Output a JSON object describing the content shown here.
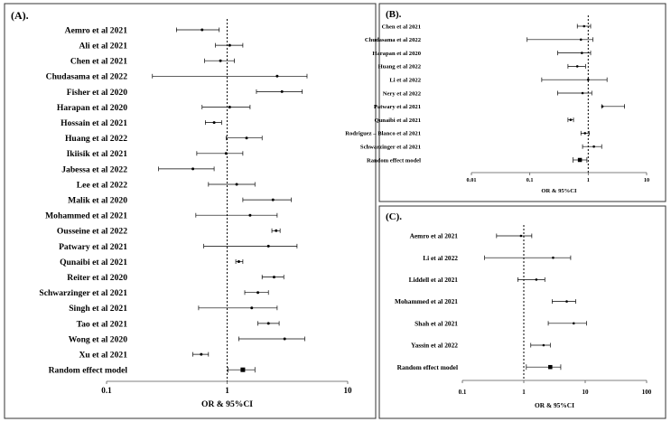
{
  "chart_data": [
    {
      "type": "forest",
      "title": "(A).",
      "xlabel": "OR & 95%CI",
      "xscale": "log",
      "xlim": [
        0.1,
        10
      ],
      "xticks": [
        "0.1",
        "1",
        "10"
      ],
      "reference_line": 1,
      "studies": [
        {
          "label": "Aemro et al 2021",
          "or": 0.62,
          "lo": 0.38,
          "hi": 0.86
        },
        {
          "label": "Ali et al 2021",
          "or": 1.05,
          "lo": 0.8,
          "hi": 1.35
        },
        {
          "label": "Chen et al 2021",
          "or": 0.88,
          "lo": 0.65,
          "hi": 1.15
        },
        {
          "label": "Chudasama et al 2022",
          "or": 2.6,
          "lo": 0.24,
          "hi": 4.6
        },
        {
          "label": "Fisher et al 2020",
          "or": 2.85,
          "lo": 1.75,
          "hi": 4.2
        },
        {
          "label": "Harapan et al 2020",
          "or": 1.05,
          "lo": 0.62,
          "hi": 1.55
        },
        {
          "label": "Hossain et al 2021",
          "or": 0.78,
          "lo": 0.66,
          "hi": 0.9
        },
        {
          "label": "Huang et al 2022",
          "or": 1.45,
          "lo": 0.98,
          "hi": 1.95
        },
        {
          "label": "Ikiisik et al 2021",
          "or": 0.98,
          "lo": 0.56,
          "hi": 1.35
        },
        {
          "label": "Jabessa et al 2022",
          "or": 0.52,
          "lo": 0.27,
          "hi": 0.78
        },
        {
          "label": "Lee et al 2022",
          "or": 1.2,
          "lo": 0.7,
          "hi": 1.7
        },
        {
          "label": "Malik et al 2020",
          "or": 2.4,
          "lo": 1.35,
          "hi": 3.4
        },
        {
          "label": "Mohammed et al 2021",
          "or": 1.55,
          "lo": 0.55,
          "hi": 2.6
        },
        {
          "label": "Ousseine et al 2022",
          "or": 2.55,
          "lo": 2.35,
          "hi": 2.75
        },
        {
          "label": "Patwary et al 2021",
          "or": 2.2,
          "lo": 0.64,
          "hi": 3.8
        },
        {
          "label": "Qunaibi et al 2021",
          "or": 1.25,
          "lo": 1.18,
          "hi": 1.35
        },
        {
          "label": "Reiter et al 2020",
          "or": 2.45,
          "lo": 1.95,
          "hi": 2.95
        },
        {
          "label": "Schwarzinger et al 2021",
          "or": 1.8,
          "lo": 1.4,
          "hi": 2.2
        },
        {
          "label": "Singh et al 2021",
          "or": 1.6,
          "lo": 0.58,
          "hi": 2.6
        },
        {
          "label": "Tao et al 2021",
          "or": 2.2,
          "lo": 1.8,
          "hi": 2.7
        },
        {
          "label": "Wong et al 2020",
          "or": 3.0,
          "lo": 1.25,
          "hi": 4.4
        },
        {
          "label": "Xu et al 2021",
          "or": 0.61,
          "lo": 0.52,
          "hi": 0.7
        },
        {
          "label": "Random effect model",
          "or": 1.35,
          "lo": 1.02,
          "hi": 1.7,
          "summary": true
        }
      ]
    },
    {
      "type": "forest",
      "title": "(B).",
      "xlabel": "OR & 95%CI",
      "xscale": "log",
      "xlim": [
        0.01,
        10
      ],
      "xticks": [
        "0.01",
        "0.1",
        "1",
        "10"
      ],
      "reference_line": 1,
      "studies": [
        {
          "label": "Chen et al 2021",
          "or": 0.85,
          "lo": 0.65,
          "hi": 1.1
        },
        {
          "label": "Chudasama et al 2022",
          "or": 0.75,
          "lo": 0.09,
          "hi": 1.2
        },
        {
          "label": "Harapan et al 2020",
          "or": 0.78,
          "lo": 0.3,
          "hi": 1.1
        },
        {
          "label": "Huang et al 2022",
          "or": 0.65,
          "lo": 0.45,
          "hi": 0.9
        },
        {
          "label": "Li et al 2022",
          "or": 1.0,
          "lo": 0.16,
          "hi": 2.1
        },
        {
          "label": "Nery et al 2022",
          "or": 0.8,
          "lo": 0.3,
          "hi": 1.15
        },
        {
          "label": "Patwary et al 2021",
          "or": 1.75,
          "lo": 1.7,
          "hi": 4.2
        },
        {
          "label": "Qunaibi et al 2021",
          "or": 0.5,
          "lo": 0.45,
          "hi": 0.56
        },
        {
          "label": "Rodriguez – Blanco et al 2021",
          "or": 0.88,
          "lo": 0.75,
          "hi": 1.05
        },
        {
          "label": "Schwarzinger et al 2021",
          "or": 1.25,
          "lo": 0.8,
          "hi": 1.7
        },
        {
          "label": "Random effect model",
          "or": 0.72,
          "lo": 0.55,
          "hi": 0.95,
          "summary": true
        }
      ]
    },
    {
      "type": "forest",
      "title": "(C).",
      "xlabel": "OR & 95%CI",
      "xscale": "log",
      "xlim": [
        0.1,
        100
      ],
      "xticks": [
        "0.1",
        "1",
        "10",
        "100"
      ],
      "reference_line": 1,
      "studies": [
        {
          "label": "Aemro et al 2021",
          "or": 0.9,
          "lo": 0.36,
          "hi": 1.35
        },
        {
          "label": "Li et al 2022",
          "or": 3.0,
          "lo": 0.23,
          "hi": 5.8
        },
        {
          "label": "Liddell et al 2021",
          "or": 1.6,
          "lo": 0.8,
          "hi": 2.2
        },
        {
          "label": "Mohammed et al 2021",
          "or": 5.0,
          "lo": 2.9,
          "hi": 7.0
        },
        {
          "label": "Shah et al 2021",
          "or": 6.5,
          "lo": 2.5,
          "hi": 10.5
        },
        {
          "label": "Yassin et al 2022",
          "or": 2.1,
          "lo": 1.3,
          "hi": 2.7
        },
        {
          "label": "Random effect model",
          "or": 2.7,
          "lo": 1.1,
          "hi": 4.0,
          "summary": true
        }
      ]
    }
  ]
}
